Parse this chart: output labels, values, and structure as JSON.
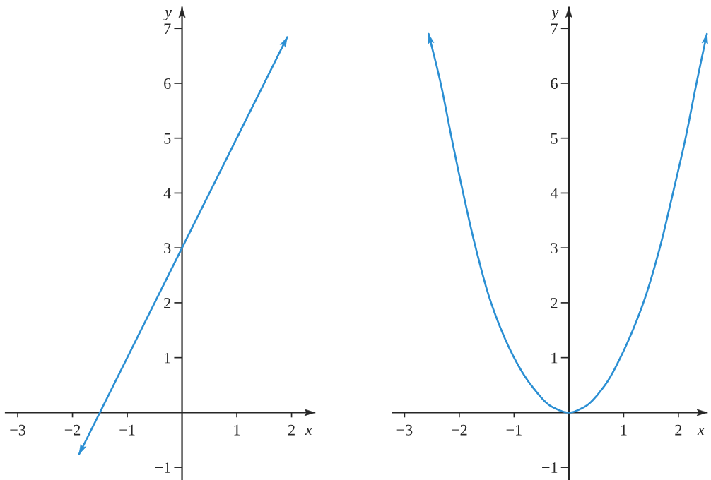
{
  "chart_data": [
    {
      "type": "line",
      "xlabel": "x",
      "ylabel": "y",
      "xlim": [
        -3.22,
        2.42
      ],
      "ylim": [
        -1.23,
        7.38
      ],
      "xticks": [
        -3,
        -2,
        -1,
        1,
        2
      ],
      "yticks": [
        -1,
        1,
        2,
        3,
        4,
        5,
        6,
        7
      ],
      "series": [
        {
          "color": "#2b8fd3",
          "x": [
            -1.88,
            1.92
          ],
          "values": [
            -0.76,
            6.84
          ]
        }
      ]
    },
    {
      "type": "line",
      "xlabel": "x",
      "ylabel": "y",
      "xlim": [
        -3.21,
        2.52
      ],
      "ylim": [
        -1.23,
        7.38
      ],
      "xticks": [
        -3,
        -2,
        -1,
        1,
        2
      ],
      "yticks": [
        -1,
        1,
        2,
        3,
        4,
        5,
        6,
        7
      ],
      "series": [
        {
          "color": "#2b8fd3",
          "x": [
            -2.56,
            -2.34,
            -2.14,
            -1.93,
            -1.7,
            -1.42,
            -1.0,
            -0.69,
            -0.3,
            0,
            0.28,
            0.66,
            0.94,
            1.36,
            1.66,
            1.9,
            2.13,
            2.33,
            2.52
          ],
          "values": [
            6.9,
            6,
            5,
            4,
            3,
            2,
            1,
            0.5,
            0.1,
            0,
            0.1,
            0.5,
            1,
            2,
            3,
            4,
            5,
            6,
            6.9
          ]
        }
      ]
    }
  ]
}
